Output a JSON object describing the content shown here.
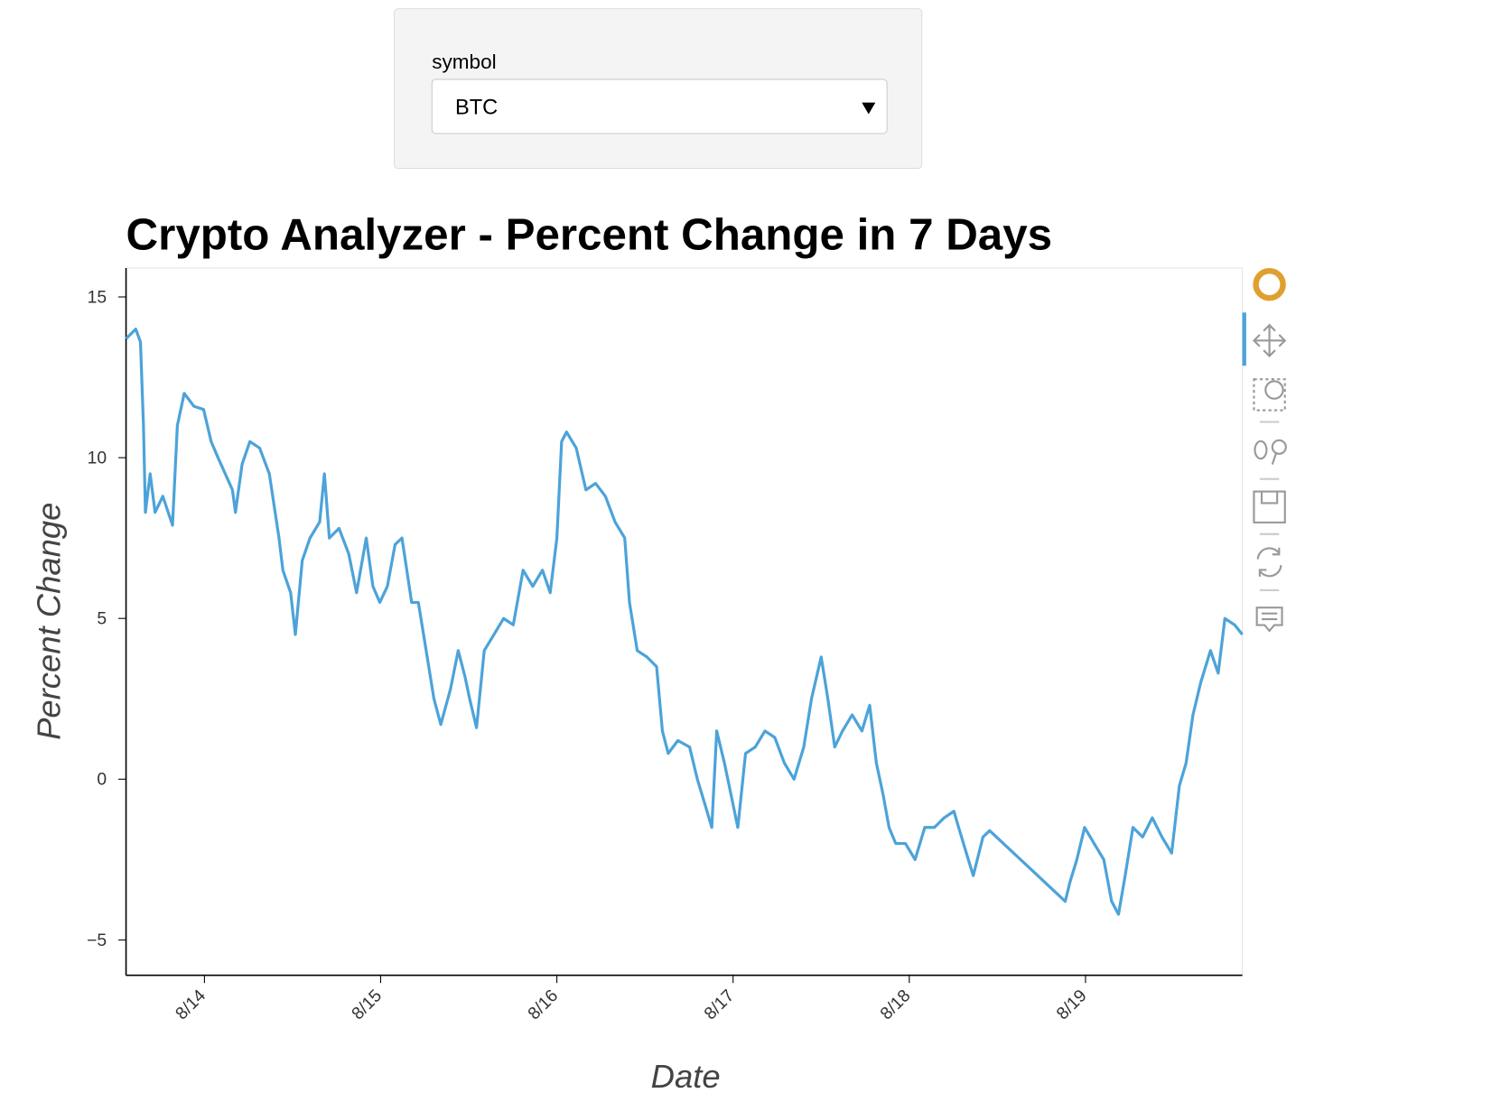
{
  "widget": {
    "label": "symbol",
    "value": "BTC"
  },
  "chart_data": {
    "type": "line",
    "title": "Crypto Analyzer - Percent Change in 7 Days",
    "xlabel": "Date",
    "ylabel": "Percent Change",
    "color": "#4ca3d9",
    "x": [
      13.555,
      13.61,
      13.637,
      13.654,
      13.665,
      13.692,
      13.72,
      13.764,
      13.819,
      13.846,
      13.885,
      13.94,
      13.995,
      14.038,
      14.077,
      14.159,
      14.176,
      14.214,
      14.258,
      14.313,
      14.368,
      14.423,
      14.445,
      14.489,
      14.516,
      14.555,
      14.599,
      14.654,
      14.681,
      14.709,
      14.764,
      14.819,
      14.863,
      14.918,
      14.956,
      14.995,
      15.038,
      15.082,
      15.121,
      15.176,
      15.214,
      15.258,
      15.302,
      15.341,
      15.396,
      15.44,
      15.478,
      15.505,
      15.544,
      15.588,
      15.643,
      15.698,
      15.753,
      15.808,
      15.863,
      15.918,
      15.962,
      16.0,
      16.027,
      16.055,
      16.11,
      16.165,
      16.22,
      16.275,
      16.33,
      16.385,
      16.412,
      16.456,
      16.511,
      16.566,
      16.599,
      16.632,
      16.687,
      16.753,
      16.797,
      16.852,
      16.879,
      16.907,
      16.951,
      16.989,
      17.027,
      17.071,
      17.126,
      17.181,
      17.236,
      17.291,
      17.346,
      17.401,
      17.445,
      17.5,
      17.538,
      17.577,
      17.621,
      17.676,
      17.731,
      17.775,
      17.813,
      17.852,
      17.885,
      17.923,
      17.978,
      18.033,
      18.088,
      18.143,
      18.198,
      18.253,
      18.28,
      18.335,
      18.363,
      18.418,
      18.456,
      18.885,
      18.912,
      18.951,
      18.995,
      19.049,
      19.104,
      19.148,
      19.187,
      19.225,
      19.269,
      19.324,
      19.379,
      19.434,
      19.489,
      19.533,
      19.571,
      19.61,
      19.654,
      19.709,
      19.753,
      19.791,
      19.846,
      19.89
    ],
    "values": [
      13.7,
      14.0,
      13.6,
      11.0,
      8.3,
      9.5,
      8.3,
      8.8,
      7.9,
      11.0,
      12.0,
      11.6,
      11.5,
      10.5,
      10.0,
      9.0,
      8.3,
      9.8,
      10.5,
      10.3,
      9.5,
      7.5,
      6.5,
      5.8,
      4.5,
      6.8,
      7.5,
      8.0,
      9.5,
      7.5,
      7.8,
      7.0,
      5.8,
      7.5,
      6.0,
      5.5,
      6.0,
      7.3,
      7.5,
      5.5,
      5.5,
      4.0,
      2.5,
      1.7,
      2.8,
      4.0,
      3.2,
      2.5,
      1.6,
      4.0,
      4.5,
      5.0,
      4.8,
      6.5,
      6.0,
      6.5,
      5.8,
      7.5,
      10.5,
      10.8,
      10.3,
      9.0,
      9.2,
      8.8,
      8.0,
      7.5,
      5.5,
      4.0,
      3.8,
      3.5,
      1.5,
      0.8,
      1.2,
      1.0,
      0.0,
      -1.0,
      -1.5,
      1.5,
      0.5,
      -0.5,
      -1.5,
      0.8,
      1.0,
      1.5,
      1.3,
      0.5,
      0.0,
      1.0,
      2.5,
      3.8,
      2.5,
      1.0,
      1.5,
      2.0,
      1.5,
      2.3,
      0.5,
      -0.5,
      -1.5,
      -2.0,
      -2.0,
      -2.5,
      -1.5,
      -1.5,
      -1.2,
      -1.0,
      -1.5,
      -2.5,
      -3.0,
      -1.8,
      -1.6,
      -3.8,
      -3.2,
      -2.5,
      -1.5,
      -2.0,
      -2.5,
      -3.8,
      -4.2,
      -3.0,
      -1.5,
      -1.8,
      -1.2,
      -1.8,
      -2.3,
      -0.2,
      0.5,
      2.0,
      3.0,
      4.0,
      3.3,
      5.0,
      4.8,
      4.5
    ],
    "xlim": [
      13.555,
      19.89
    ],
    "xticks": [
      {
        "value": 14,
        "label": "8/14"
      },
      {
        "value": 15,
        "label": "8/15"
      },
      {
        "value": 16,
        "label": "8/16"
      },
      {
        "value": 17,
        "label": "8/17"
      },
      {
        "value": 18,
        "label": "8/18"
      },
      {
        "value": 19,
        "label": "8/19"
      }
    ],
    "ylim": [
      -6.1,
      15.9
    ],
    "yticks": [
      {
        "value": -5,
        "label": "−5"
      },
      0,
      5,
      10,
      15
    ]
  }
}
